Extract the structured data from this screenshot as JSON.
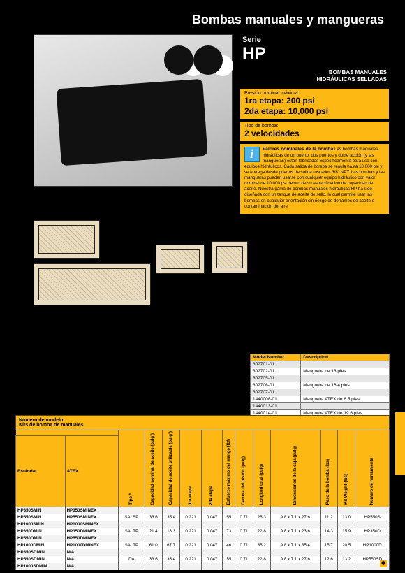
{
  "page_title": "Bombas manuales y mangueras",
  "serie_label": "Serie",
  "serie_value": "HP",
  "subheading_line1": "BOMBAS MANUALES",
  "subheading_line2": "HIDRÁULICAS SELLADAS",
  "pressure": {
    "label": "Presión nominal máxima:",
    "line1": "1ra etapa: 200 psi",
    "line2": "2da etapa: 10,000 psi"
  },
  "pump_type": {
    "label": "Tipo de bomba:",
    "value": "2 velocidades"
  },
  "info": {
    "title": "Valores nominales de la bomba",
    "body": "Las bombas manuales hidráulicas de un puerto, dos puertos y doble acción (y las mangueras) están fabricadas específicamente para uso con equipos hidráulicos. Cada salida de bomba se regula hasta 10,000 psi y se entrega desde puertos de salida roscados 3/8\" NPT. Las bombas y las mangueras pueden usarse con cualquier equipo hidráulico con valor nominal de 10,000 psi dentro de su especificación de capacidad de aceite. Nuestra gama de bombas manuales hidráulicas HP ha sido diseñada con un tanque de aceite de sello, lo cual permite usar las bombas en cualquier orientación sin riesgo de derrames de aceite o contaminación del aire."
  },
  "small_table": {
    "headers": [
      "Model Number",
      "Description"
    ],
    "rows": [
      [
        "302701-01",
        ""
      ],
      [
        "302702-01",
        "Manguera de 13 pies"
      ],
      [
        "302705-01",
        ""
      ],
      [
        "302706-01",
        "Manguera de 16.4 pies"
      ],
      [
        "302707-01",
        ""
      ],
      [
        "1440008-01",
        "Manguera ATEX de 6.5 pies"
      ],
      [
        "1440013-01",
        ""
      ],
      [
        "1440014-01",
        "Manguera ATEX de 19.6 pies"
      ]
    ]
  },
  "main_table": {
    "header_line1": "Número de modelo",
    "header_line2": "Kits de bomba de manuales",
    "sub_headers": [
      "Estándar",
      "ATEX"
    ],
    "rot_headers": [
      "Tipo *",
      "Capacidad nominal de aceite (pulg³)",
      "Capacidad de aceite utilizable (pulg³)",
      "1ra etapa",
      "2da etapa",
      "Esfuerzo máximo del mango (lbf)",
      "Carrera del pistón (pulg)",
      "Longitud total (pulg)",
      "Dimensiones de la caja (pulg)",
      "Peso de la bomba (lbs)",
      "Kit Weight (lbs)",
      "Número de herramienta"
    ],
    "vol_header": "Volumen de aceite por carrera (pulg³)",
    "rows": [
      [
        "HP350SMIN",
        "HP350SMINEX",
        "",
        "",
        "",
        "",
        "",
        "",
        "",
        "",
        "",
        "",
        "",
        ""
      ],
      [
        "HP550SMIN",
        "HP550SMINEX",
        "SA, SP",
        "33.6",
        "35.4",
        "0.221",
        "0.047",
        "55",
        "0.71",
        "25.3",
        "9.8 x 7.1 x 27.6",
        "11.2",
        "13.0",
        "HP550S"
      ],
      [
        "HP1000SMIN",
        "HP1000SMINEX",
        "",
        "",
        "",
        "",
        "",
        "",
        "",
        "",
        "",
        "",
        "",
        ""
      ],
      [
        "HP350DMIN",
        "HP350DMINEX",
        "SA, TP",
        "21.4",
        "18.3",
        "0.221",
        "0.047",
        "73",
        "0.71",
        "22.8",
        "9.8 x 7.1 x 23.6",
        "14.3",
        "15.9",
        "HP350D"
      ],
      [
        "HP550DMIN",
        "HP550DMINEX",
        "",
        "",
        "",
        "",
        "",
        "",
        "",
        "",
        "",
        "",
        "",
        ""
      ],
      [
        "HP1000DMIN",
        "HP1000DMINEX",
        "SA, TP",
        "61.0",
        "67.7",
        "0.221",
        "0.047",
        "46",
        "0.71",
        "35.2",
        "9.8 x 7.1 x 35.4",
        "15.7",
        "20.5",
        "HP1000D"
      ],
      [
        "HP350SDMIN",
        "N/A",
        "",
        "",
        "",
        "",
        "",
        "",
        "",
        "",
        "",
        "",
        "",
        ""
      ],
      [
        "HP550SDMIN",
        "N/A",
        "DA",
        "33.6",
        "35.4",
        "0.221",
        "0.047",
        "55",
        "0.71",
        "22.8",
        "9.8 x 7.1 x 27.6",
        "12.6",
        "13.2",
        "HP550SD"
      ],
      [
        "HP1000SDMIN",
        "N/A",
        "",
        "",
        "",
        "",
        "",
        "",
        "",
        "",
        "",
        "",
        "",
        ""
      ]
    ]
  },
  "colors": {
    "accent": "#fdb813",
    "bg": "#000000"
  }
}
